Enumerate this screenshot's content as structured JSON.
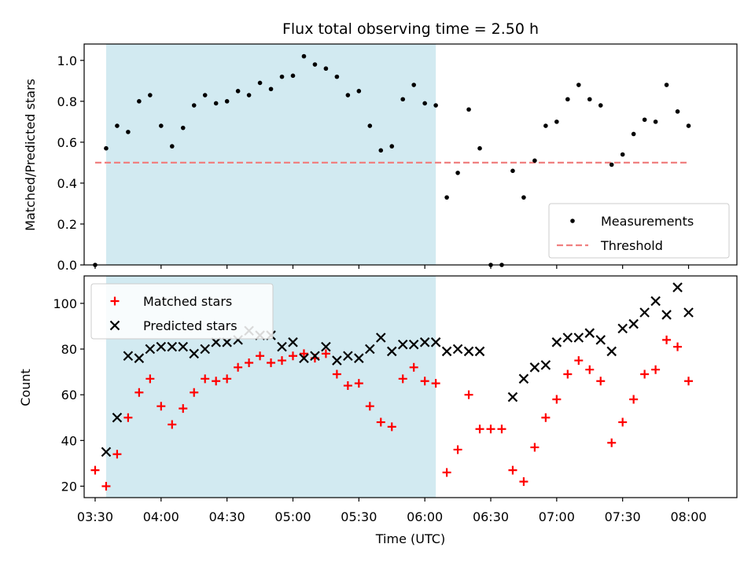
{
  "chart_data": [
    {
      "type": "scatter",
      "title": "Flux total observing time = 2.50 h",
      "xlabel": "",
      "ylabel": "Matched/Predicted stars",
      "xlim": [
        "03:25",
        "08:22"
      ],
      "ylim": [
        0,
        1.08
      ],
      "y_ticks": [
        0.0,
        0.2,
        0.4,
        0.6,
        0.8,
        1.0
      ],
      "y_tick_labels": [
        "0.0",
        "0.2",
        "0.4",
        "0.6",
        "0.8",
        "1.0"
      ],
      "shaded_interval": [
        "03:35",
        "06:05"
      ],
      "shade_color": "#add8e6",
      "legend_position": "lower right",
      "threshold": {
        "name": "Threshold",
        "y": 0.5,
        "x_range": [
          "03:30",
          "08:00"
        ],
        "color": "#f08080"
      },
      "series": [
        {
          "name": "Measurements",
          "color": "#000000",
          "marker": "dot",
          "points": [
            [
              "03:30",
              0.0
            ],
            [
              "03:35",
              0.57
            ],
            [
              "03:40",
              0.68
            ],
            [
              "03:45",
              0.65
            ],
            [
              "03:50",
              0.8
            ],
            [
              "03:55",
              0.83
            ],
            [
              "04:00",
              0.68
            ],
            [
              "04:05",
              0.58
            ],
            [
              "04:10",
              0.67
            ],
            [
              "04:15",
              0.78
            ],
            [
              "04:20",
              0.83
            ],
            [
              "04:25",
              0.79
            ],
            [
              "04:30",
              0.8
            ],
            [
              "04:35",
              0.85
            ],
            [
              "04:40",
              0.83
            ],
            [
              "04:45",
              0.89
            ],
            [
              "04:50",
              0.86
            ],
            [
              "04:55",
              0.92
            ],
            [
              "05:00",
              0.925
            ],
            [
              "05:05",
              1.02
            ],
            [
              "05:10",
              0.98
            ],
            [
              "05:15",
              0.96
            ],
            [
              "05:20",
              0.92
            ],
            [
              "05:25",
              0.83
            ],
            [
              "05:30",
              0.85
            ],
            [
              "05:35",
              0.68
            ],
            [
              "05:40",
              0.56
            ],
            [
              "05:45",
              0.58
            ],
            [
              "05:50",
              0.81
            ],
            [
              "05:55",
              0.88
            ],
            [
              "06:00",
              0.79
            ],
            [
              "06:05",
              0.78
            ],
            [
              "06:10",
              0.33
            ],
            [
              "06:15",
              0.45
            ],
            [
              "06:20",
              0.76
            ],
            [
              "06:25",
              0.57
            ],
            [
              "06:30",
              0.0
            ],
            [
              "06:35",
              0.0
            ],
            [
              "06:40",
              0.46
            ],
            [
              "06:45",
              0.33
            ],
            [
              "06:50",
              0.51
            ],
            [
              "06:55",
              0.68
            ],
            [
              "07:00",
              0.7
            ],
            [
              "07:05",
              0.81
            ],
            [
              "07:10",
              0.88
            ],
            [
              "07:15",
              0.81
            ],
            [
              "07:20",
              0.78
            ],
            [
              "07:25",
              0.49
            ],
            [
              "07:30",
              0.54
            ],
            [
              "07:35",
              0.64
            ],
            [
              "07:40",
              0.71
            ],
            [
              "07:45",
              0.7
            ],
            [
              "07:50",
              0.88
            ],
            [
              "07:55",
              0.75
            ],
            [
              "08:00",
              0.68
            ]
          ]
        }
      ]
    },
    {
      "type": "scatter",
      "title": "",
      "xlabel": "Time (UTC)",
      "ylabel": "Count",
      "xlim": [
        "03:25",
        "08:22"
      ],
      "ylim": [
        15,
        112
      ],
      "y_ticks": [
        20,
        40,
        60,
        80,
        100
      ],
      "x_ticks": [
        "03:30",
        "04:00",
        "04:30",
        "05:00",
        "05:30",
        "06:00",
        "06:30",
        "07:00",
        "07:30",
        "08:00"
      ],
      "shaded_interval": [
        "03:35",
        "06:05"
      ],
      "shade_color": "#add8e6",
      "legend_position": "upper left",
      "series": [
        {
          "name": "Matched stars",
          "color": "#ff0000",
          "marker": "plus",
          "points": [
            [
              "03:30",
              27
            ],
            [
              "03:35",
              20
            ],
            [
              "03:40",
              34
            ],
            [
              "03:45",
              50
            ],
            [
              "03:50",
              61
            ],
            [
              "03:55",
              67
            ],
            [
              "04:00",
              55
            ],
            [
              "04:05",
              47
            ],
            [
              "04:10",
              54
            ],
            [
              "04:15",
              61
            ],
            [
              "04:20",
              67
            ],
            [
              "04:25",
              66
            ],
            [
              "04:30",
              67
            ],
            [
              "04:35",
              72
            ],
            [
              "04:40",
              74
            ],
            [
              "04:45",
              77
            ],
            [
              "04:50",
              74
            ],
            [
              "04:55",
              75
            ],
            [
              "05:00",
              77
            ],
            [
              "05:05",
              78
            ],
            [
              "05:10",
              76
            ],
            [
              "05:15",
              78
            ],
            [
              "05:20",
              69
            ],
            [
              "05:25",
              64
            ],
            [
              "05:30",
              65
            ],
            [
              "05:35",
              55
            ],
            [
              "05:40",
              48
            ],
            [
              "05:45",
              46
            ],
            [
              "05:50",
              67
            ],
            [
              "05:55",
              72
            ],
            [
              "06:00",
              66
            ],
            [
              "06:05",
              65
            ],
            [
              "06:10",
              26
            ],
            [
              "06:15",
              36
            ],
            [
              "06:20",
              60
            ],
            [
              "06:25",
              45
            ],
            [
              "06:30",
              45
            ],
            [
              "06:35",
              45
            ],
            [
              "06:40",
              27
            ],
            [
              "06:45",
              22
            ],
            [
              "06:50",
              37
            ],
            [
              "06:55",
              50
            ],
            [
              "07:00",
              58
            ],
            [
              "07:05",
              69
            ],
            [
              "07:10",
              75
            ],
            [
              "07:15",
              71
            ],
            [
              "07:20",
              66
            ],
            [
              "07:25",
              39
            ],
            [
              "07:30",
              48
            ],
            [
              "07:35",
              58
            ],
            [
              "07:40",
              69
            ],
            [
              "07:45",
              71
            ],
            [
              "07:50",
              84
            ],
            [
              "07:55",
              81
            ],
            [
              "08:00",
              66
            ]
          ]
        },
        {
          "name": "Predicted stars",
          "color": "#000000",
          "marker": "x",
          "points": [
            [
              "03:35",
              35
            ],
            [
              "03:40",
              50
            ],
            [
              "03:45",
              77
            ],
            [
              "03:50",
              76
            ],
            [
              "03:55",
              80
            ],
            [
              "04:00",
              81
            ],
            [
              "04:05",
              81
            ],
            [
              "04:10",
              81
            ],
            [
              "04:15",
              78
            ],
            [
              "04:20",
              80
            ],
            [
              "04:25",
              83
            ],
            [
              "04:30",
              83
            ],
            [
              "04:35",
              84
            ],
            [
              "04:40",
              88
            ],
            [
              "04:45",
              86
            ],
            [
              "04:50",
              86
            ],
            [
              "04:55",
              81
            ],
            [
              "05:00",
              83
            ],
            [
              "05:05",
              76
            ],
            [
              "05:10",
              77
            ],
            [
              "05:15",
              81
            ],
            [
              "05:20",
              75
            ],
            [
              "05:25",
              77
            ],
            [
              "05:30",
              76
            ],
            [
              "05:35",
              80
            ],
            [
              "05:40",
              85
            ],
            [
              "05:45",
              79
            ],
            [
              "05:50",
              82
            ],
            [
              "05:55",
              82
            ],
            [
              "06:00",
              83
            ],
            [
              "06:05",
              83
            ],
            [
              "06:10",
              79
            ],
            [
              "06:15",
              80
            ],
            [
              "06:20",
              79
            ],
            [
              "06:25",
              79
            ],
            [
              "06:40",
              59
            ],
            [
              "06:45",
              67
            ],
            [
              "06:50",
              72
            ],
            [
              "06:55",
              73
            ],
            [
              "07:00",
              83
            ],
            [
              "07:05",
              85
            ],
            [
              "07:10",
              85
            ],
            [
              "07:15",
              87
            ],
            [
              "07:20",
              84
            ],
            [
              "07:25",
              79
            ],
            [
              "07:30",
              89
            ],
            [
              "07:35",
              91
            ],
            [
              "07:40",
              96
            ],
            [
              "07:45",
              101
            ],
            [
              "07:50",
              95
            ],
            [
              "07:55",
              107
            ],
            [
              "08:00",
              96
            ]
          ]
        }
      ]
    }
  ]
}
